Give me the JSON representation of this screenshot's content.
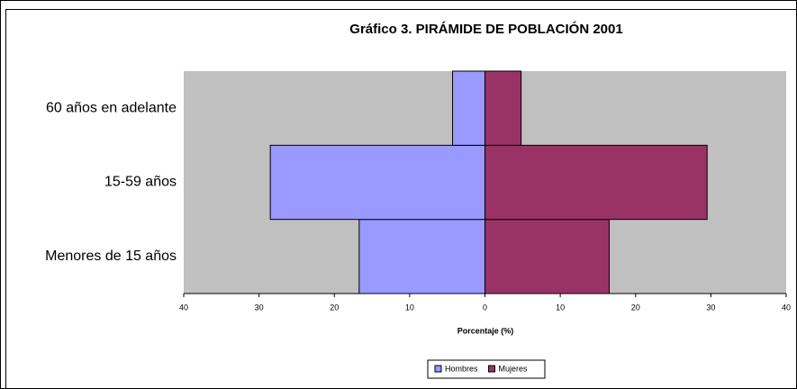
{
  "chart_data": {
    "type": "pyramid",
    "title": "Gráfico 3.  PIRÁMIDE DE POBLACIÓN 2001",
    "xlabel": "Porcentaje (%)",
    "categories": [
      "Menores de 15 años",
      "15-59 años",
      "60 años en adelante"
    ],
    "series": [
      {
        "name": "Hombres",
        "color": "#9999ff",
        "values": [
          -16.7,
          -28.5,
          -4.3
        ]
      },
      {
        "name": "Mujeres",
        "color": "#993366",
        "values": [
          16.5,
          29.5,
          4.8
        ]
      }
    ],
    "xlim": [
      -40,
      40
    ],
    "xticks": [
      {
        "value": -40,
        "label": "40"
      },
      {
        "value": -30,
        "label": "30"
      },
      {
        "value": -20,
        "label": "20"
      },
      {
        "value": -10,
        "label": "10"
      },
      0,
      10,
      20,
      30,
      40
    ],
    "plot_background": "#c0c0c0",
    "legend": "bottom"
  }
}
